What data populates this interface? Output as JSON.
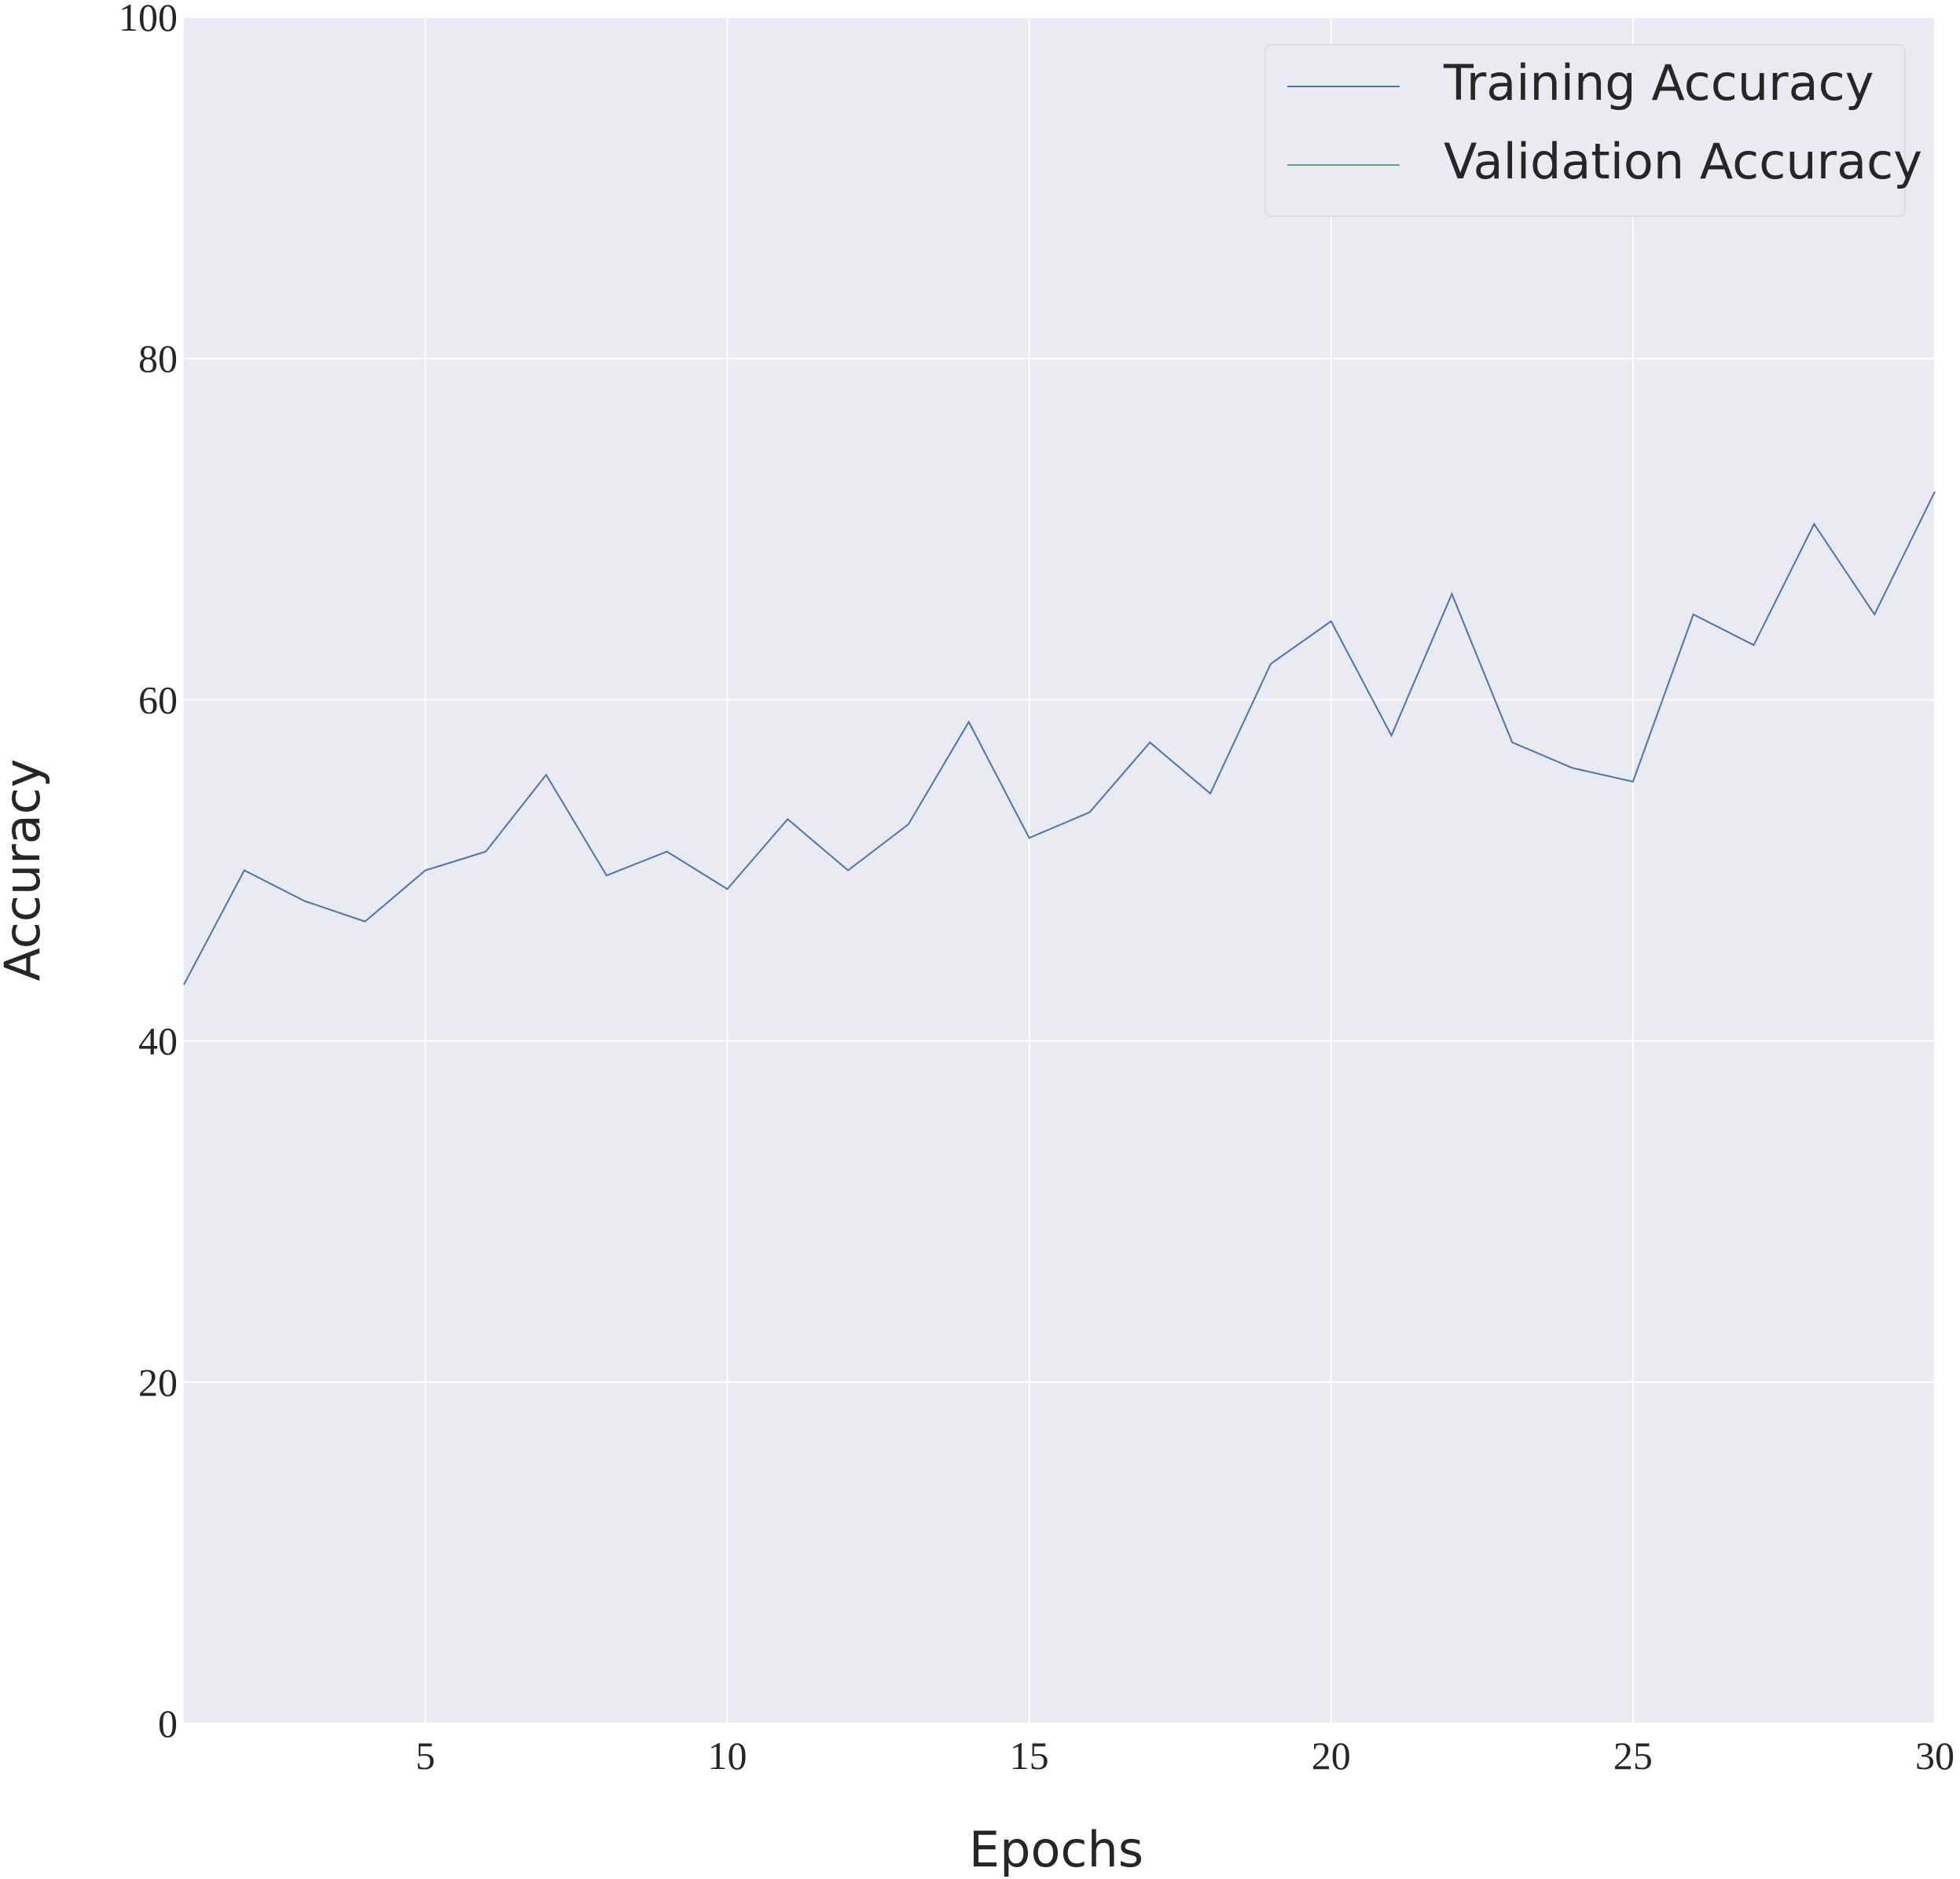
{
  "chart_data": {
    "type": "line",
    "xlabel": "Epochs",
    "ylabel": "Accuracy",
    "x": [
      1,
      2,
      3,
      4,
      5,
      6,
      7,
      8,
      9,
      10,
      11,
      12,
      13,
      14,
      15,
      16,
      17,
      18,
      19,
      20,
      21,
      22,
      23,
      24,
      25,
      26,
      27,
      28,
      29,
      30
    ],
    "series": [
      {
        "name": "Training Accuracy",
        "color": "#4c72b0",
        "values": [
          43.3,
          50.0,
          48.2,
          47.0,
          50.0,
          51.1,
          55.6,
          49.7,
          51.1,
          48.9,
          53.0,
          50.0,
          52.7,
          58.7,
          51.9,
          53.4,
          57.5,
          54.5,
          62.1,
          64.6,
          57.9,
          66.2,
          57.5,
          56.0,
          55.2,
          65.0,
          63.2,
          70.3,
          65.0,
          72.2
        ]
      },
      {
        "name": "Validation Accuracy",
        "color": "#55a868",
        "values": [
          null,
          null,
          null,
          null,
          null,
          null,
          null,
          null,
          null,
          null,
          null,
          null,
          null,
          null,
          null,
          null,
          null,
          null,
          null,
          null,
          null,
          null,
          null,
          null,
          null,
          null,
          null,
          null,
          null,
          null
        ]
      }
    ],
    "xlim": [
      1,
      30
    ],
    "xticks": [
      5,
      10,
      15,
      20,
      25,
      30
    ],
    "ylim": [
      0,
      100
    ],
    "yticks": [
      0,
      20,
      40,
      60,
      80,
      100
    ],
    "grid": true,
    "legend": "upper right"
  }
}
